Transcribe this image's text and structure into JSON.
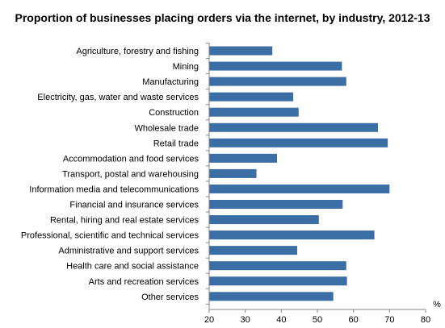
{
  "chart_data": {
    "type": "bar",
    "orientation": "horizontal",
    "title": "Proportion of businesses placing orders via the internet, by industry, 2012-13",
    "unit_label": "%",
    "xlim": [
      20,
      80
    ],
    "xticks": [
      20,
      30,
      40,
      50,
      60,
      70,
      80
    ],
    "bar_color": "#3a6ea5",
    "grid": false,
    "categories": [
      "Agriculture, forestry and fishing",
      "Mining",
      "Manufacturing",
      "Electricity, gas, water and waste services",
      "Construction",
      "Wholesale trade",
      "Retail trade",
      "Accommodation and food services",
      "Transport, postal and warehousing",
      "Information media and telecommunications",
      "Financial and insurance services",
      "Rental, hiring and real estate services",
      "Professional, scientific and technical services",
      "Administrative and support services",
      "Health care and social assistance",
      "Arts and recreation services",
      "Other services"
    ],
    "values": [
      37.5,
      56.8,
      58.0,
      43.3,
      44.8,
      66.8,
      69.5,
      38.8,
      33.1,
      70.0,
      57.0,
      50.4,
      65.8,
      44.4,
      58.0,
      58.2,
      54.4
    ]
  }
}
